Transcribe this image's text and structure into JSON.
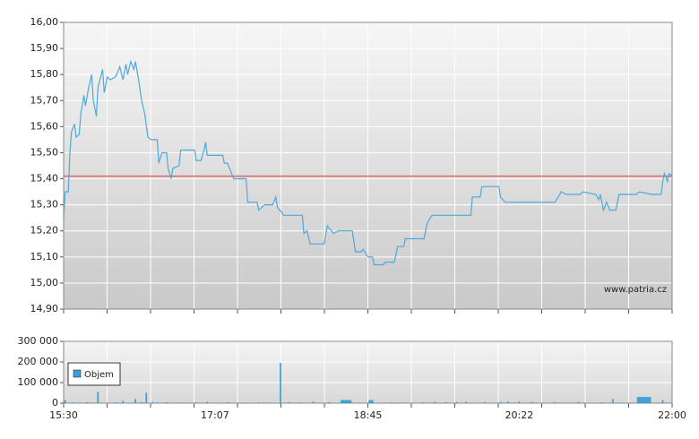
{
  "chart_data": [
    {
      "type": "line",
      "xlim": [
        930,
        1320
      ],
      "ylim": [
        14.9,
        16.0
      ],
      "yticks": [
        {
          "value": 16.0,
          "label": "16,00"
        },
        {
          "value": 15.9,
          "label": "15,90"
        },
        {
          "value": 15.8,
          "label": "15,80"
        },
        {
          "value": 15.7,
          "label": "15,70"
        },
        {
          "value": 15.6,
          "label": "15,60"
        },
        {
          "value": 15.5,
          "label": "15,50"
        },
        {
          "value": 15.4,
          "label": "15,40"
        },
        {
          "value": 15.3,
          "label": "15,30"
        },
        {
          "value": 15.2,
          "label": "15,20"
        },
        {
          "value": 15.1,
          "label": "15,10"
        },
        {
          "value": 15.0,
          "label": "15,00"
        },
        {
          "value": 14.9,
          "label": "14,90"
        }
      ],
      "grid": true,
      "reference_line": {
        "value": 15.41,
        "color": "#e06666"
      },
      "annotation": "www.patria.cz",
      "series": [
        {
          "color": "#4ea9d9",
          "x": [
            930,
            931,
            933,
            934,
            935,
            937,
            938,
            940,
            941,
            943,
            944,
            946,
            948,
            949,
            951,
            952,
            955,
            956,
            958,
            960,
            963,
            964,
            966,
            968,
            970,
            971,
            973,
            975,
            976,
            978,
            980,
            982,
            984,
            986,
            990,
            991,
            993,
            996,
            997,
            999,
            1000,
            1004,
            1005,
            1014,
            1015,
            1018,
            1020,
            1021,
            1022,
            1032,
            1033,
            1035,
            1037,
            1039,
            1047,
            1048,
            1054,
            1055,
            1059,
            1064,
            1066,
            1067,
            1070,
            1071,
            1083,
            1084,
            1086,
            1088,
            1097,
            1099,
            1103,
            1106,
            1115,
            1117,
            1121,
            1122,
            1125,
            1128,
            1129,
            1135,
            1136,
            1142,
            1144,
            1148,
            1149,
            1161,
            1163,
            1166,
            1191,
            1192,
            1197,
            1198,
            1209,
            1210,
            1213,
            1245,
            1247,
            1249,
            1252,
            1261,
            1263,
            1271,
            1273,
            1274,
            1276,
            1278,
            1280,
            1284,
            1286,
            1297,
            1299,
            1307,
            1313,
            1314,
            1315,
            1317,
            1318,
            1320
          ],
          "values": [
            15.24,
            15.35,
            15.35,
            15.5,
            15.58,
            15.61,
            15.56,
            15.57,
            15.65,
            15.72,
            15.68,
            15.75,
            15.8,
            15.7,
            15.64,
            15.75,
            15.82,
            15.73,
            15.79,
            15.78,
            15.79,
            15.8,
            15.83,
            15.78,
            15.84,
            15.8,
            15.85,
            15.82,
            15.85,
            15.78,
            15.7,
            15.65,
            15.56,
            15.55,
            15.55,
            15.46,
            15.5,
            15.5,
            15.44,
            15.4,
            15.44,
            15.45,
            15.51,
            15.51,
            15.47,
            15.47,
            15.51,
            15.54,
            15.49,
            15.49,
            15.46,
            15.46,
            15.43,
            15.4,
            15.4,
            15.31,
            15.31,
            15.28,
            15.3,
            15.3,
            15.33,
            15.29,
            15.27,
            15.26,
            15.26,
            15.19,
            15.2,
            15.15,
            15.15,
            15.22,
            15.19,
            15.2,
            15.2,
            15.12,
            15.12,
            15.13,
            15.1,
            15.1,
            15.07,
            15.07,
            15.08,
            15.08,
            15.14,
            15.14,
            15.17,
            15.17,
            15.23,
            15.26,
            15.26,
            15.33,
            15.33,
            15.37,
            15.37,
            15.33,
            15.31,
            15.31,
            15.33,
            15.35,
            15.34,
            15.34,
            15.35,
            15.34,
            15.32,
            15.34,
            15.28,
            15.31,
            15.28,
            15.28,
            15.34,
            15.34,
            15.35,
            15.34,
            15.34,
            15.39,
            15.42,
            15.39,
            15.42,
            15.41
          ]
        }
      ]
    },
    {
      "type": "bar",
      "xlim": [
        930,
        1320
      ],
      "ylim": [
        0,
        300000
      ],
      "xticks": [
        {
          "value": 930,
          "label": "15:30"
        },
        {
          "value": 1027,
          "label": "17:07"
        },
        {
          "value": 1125,
          "label": "18:45"
        },
        {
          "value": 1222,
          "label": "20:22"
        },
        {
          "value": 1320,
          "label": "22:00"
        }
      ],
      "yticks": [
        {
          "value": 300000,
          "label": "300 000"
        },
        {
          "value": 200000,
          "label": "200 000"
        },
        {
          "value": 100000,
          "label": "100 000"
        },
        0
      ],
      "grid": true,
      "series": [
        {
          "name": "Objem",
          "color": "#3b9fd6",
          "x": [
            931,
            936,
            940,
            945,
            952,
            958,
            964,
            968,
            976,
            980,
            983,
            987,
            990,
            996,
            1005,
            1015,
            1022,
            1035,
            1045,
            1055,
            1062,
            1069,
            1075,
            1082,
            1090,
            1100,
            1108,
            1109,
            1110,
            1111,
            1112,
            1113,
            1114,
            1126,
            1127,
            1128,
            1140,
            1150,
            1160,
            1168,
            1175,
            1182,
            1188,
            1200,
            1210,
            1215,
            1222,
            1230,
            1245,
            1260,
            1275,
            1282,
            1298,
            1299,
            1300,
            1301,
            1302,
            1303,
            1304,
            1305,
            1306,
            1314
          ],
          "values": [
            15000,
            4000,
            3000,
            5000,
            55000,
            3000,
            4000,
            12000,
            20000,
            5000,
            50000,
            6000,
            4000,
            5000,
            3000,
            4000,
            6000,
            5000,
            3000,
            4000,
            3000,
            195000,
            5000,
            4000,
            8000,
            5000,
            15000,
            15000,
            15000,
            15000,
            15000,
            15000,
            15000,
            15000,
            15000,
            15000,
            4000,
            3000,
            5000,
            6000,
            5000,
            6000,
            7000,
            5000,
            6000,
            8000,
            8000,
            6000,
            5000,
            6000,
            4000,
            20000,
            30000,
            30000,
            30000,
            30000,
            30000,
            30000,
            30000,
            30000,
            30000,
            15000
          ]
        }
      ]
    }
  ]
}
